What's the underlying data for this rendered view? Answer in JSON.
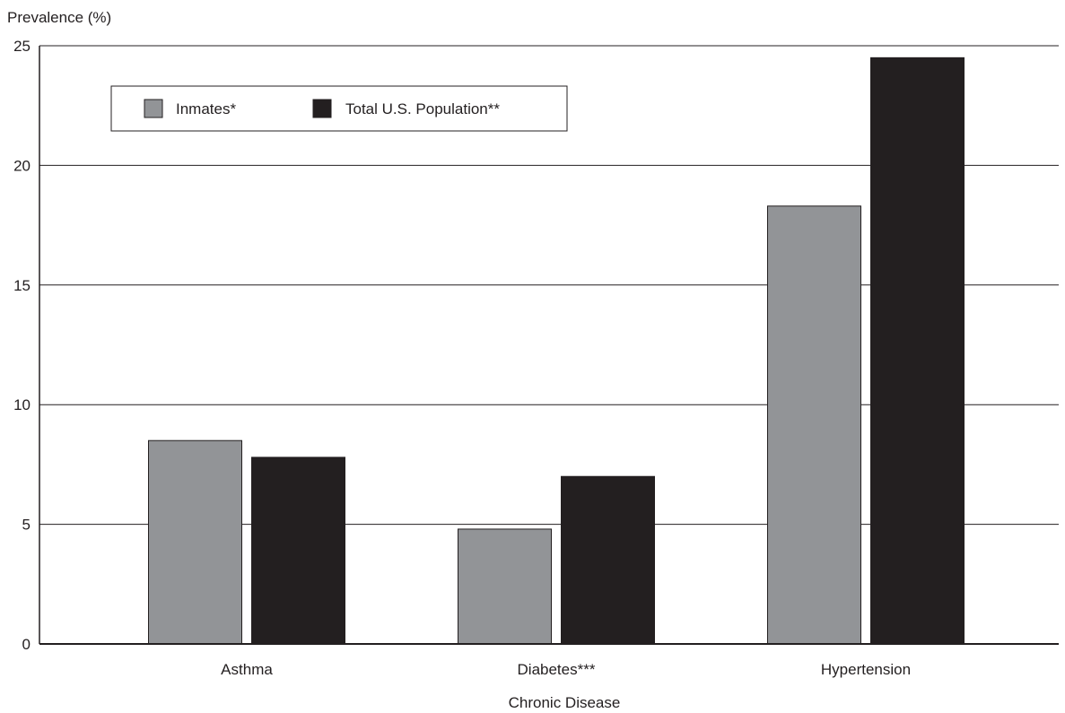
{
  "chart_data": {
    "type": "bar",
    "ylabel": "Prevalence (%)",
    "xlabel": "Chronic Disease",
    "categories": [
      "Asthma",
      "Diabetes***",
      "Hypertension"
    ],
    "series": [
      {
        "name": "Inmates*",
        "color": "#929497",
        "values": [
          8.5,
          4.8,
          18.3
        ]
      },
      {
        "name": "Total U.S. Population**",
        "color": "#231f20",
        "values": [
          7.8,
          7.0,
          24.5
        ]
      }
    ],
    "ylim": [
      0,
      25
    ],
    "yticks": [
      0,
      5,
      10,
      15,
      20,
      25
    ],
    "grid": true,
    "legend": "top-left"
  }
}
